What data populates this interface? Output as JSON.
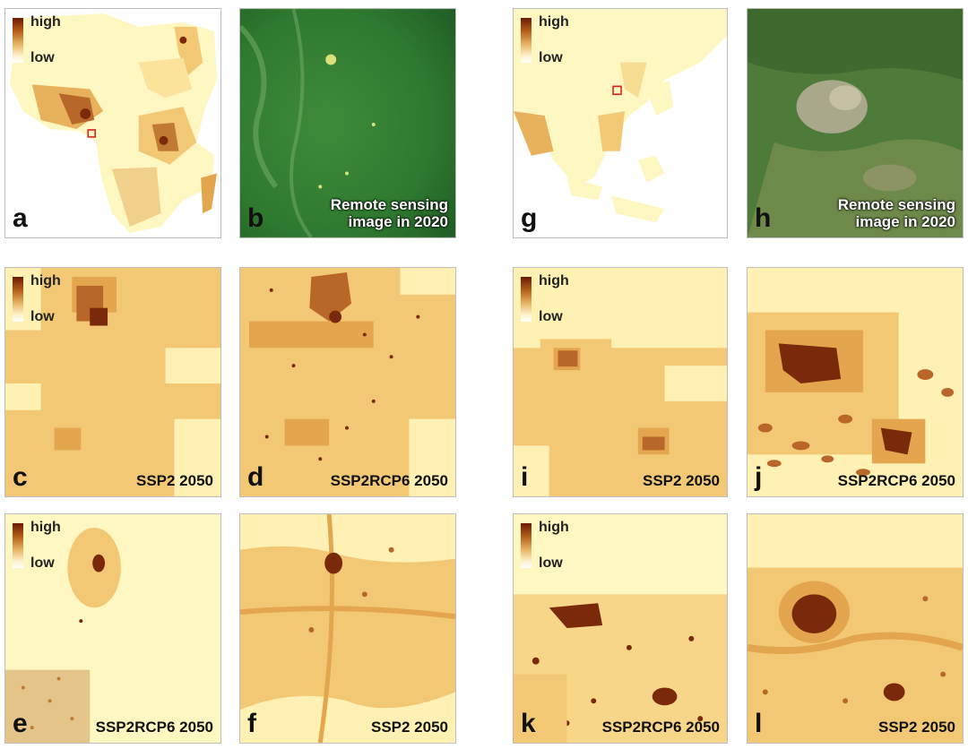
{
  "legend": {
    "high": "high",
    "low": "low"
  },
  "panels": {
    "a": {
      "label": "a"
    },
    "b": {
      "label": "b",
      "caption_line1": "Remote sensing",
      "caption_line2": "image in 2020"
    },
    "c": {
      "label": "c",
      "caption": "SSP2 2050"
    },
    "d": {
      "label": "d",
      "caption": "SSP2RCP6 2050"
    },
    "e": {
      "label": "e",
      "caption": "SSP2RCP6 2050"
    },
    "f": {
      "label": "f",
      "caption": "SSP2 2050"
    },
    "g": {
      "label": "g"
    },
    "h": {
      "label": "h",
      "caption_line1": "Remote sensing",
      "caption_line2": "image in 2020"
    },
    "i": {
      "label": "i",
      "caption": "SSP2 2050"
    },
    "j": {
      "label": "j",
      "caption": "SSP2RCP6 2050"
    },
    "k": {
      "label": "k",
      "caption": "SSP2RCP6 2050"
    },
    "l": {
      "label": "l",
      "caption": "SSP2 2050"
    }
  },
  "colors": {
    "low": "#fff7c2",
    "mid_low": "#f3c875",
    "mid": "#e3a64e",
    "mid_high": "#c07a32",
    "high": "#7a2a0a",
    "marker": "#e0201c",
    "vegetation": "#3f8a3a"
  },
  "icons": {
    "legend": "color-gradient-legend",
    "marker": "red-square-marker"
  }
}
